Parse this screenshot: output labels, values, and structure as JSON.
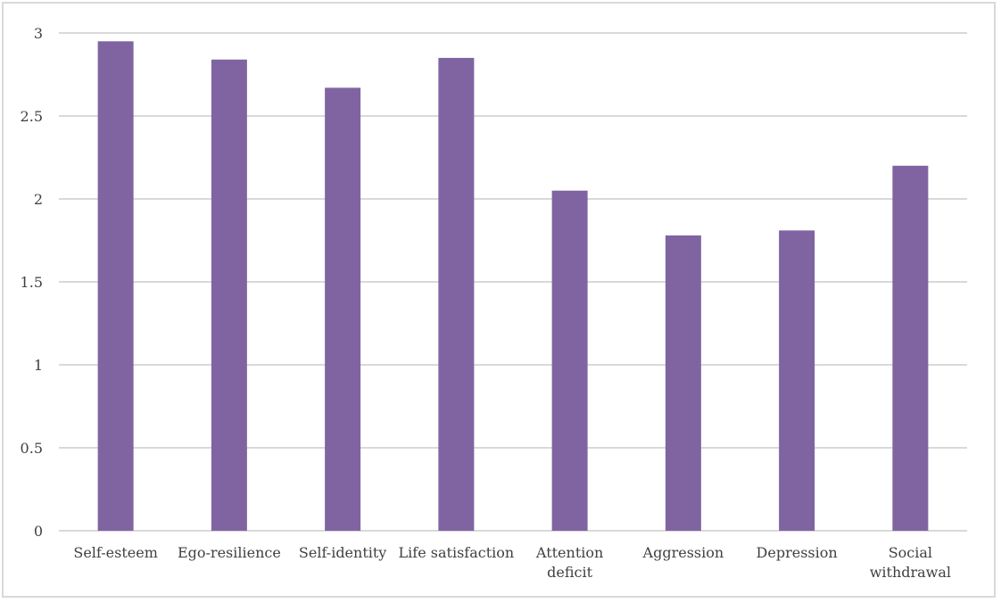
{
  "chart_data": {
    "type": "bar",
    "categories": [
      [
        "Self-esteem"
      ],
      [
        "Ego-resilience"
      ],
      [
        "Self-identity"
      ],
      [
        "Life satisfaction"
      ],
      [
        "Attention",
        "deficit"
      ],
      [
        "Aggression"
      ],
      [
        "Depression"
      ],
      [
        "Social",
        "withdrawal"
      ]
    ],
    "values": [
      2.95,
      2.84,
      2.67,
      2.85,
      2.05,
      1.78,
      1.81,
      2.2
    ],
    "yticks": [
      "0",
      "0.5",
      "1",
      "1.5",
      "2",
      "2.5",
      "3"
    ],
    "ylim": [
      0,
      3
    ],
    "grid": true,
    "legend": "none",
    "colors": {
      "bar": "#8064a2",
      "grid": "#d9d9d9",
      "text": "#404040"
    }
  }
}
